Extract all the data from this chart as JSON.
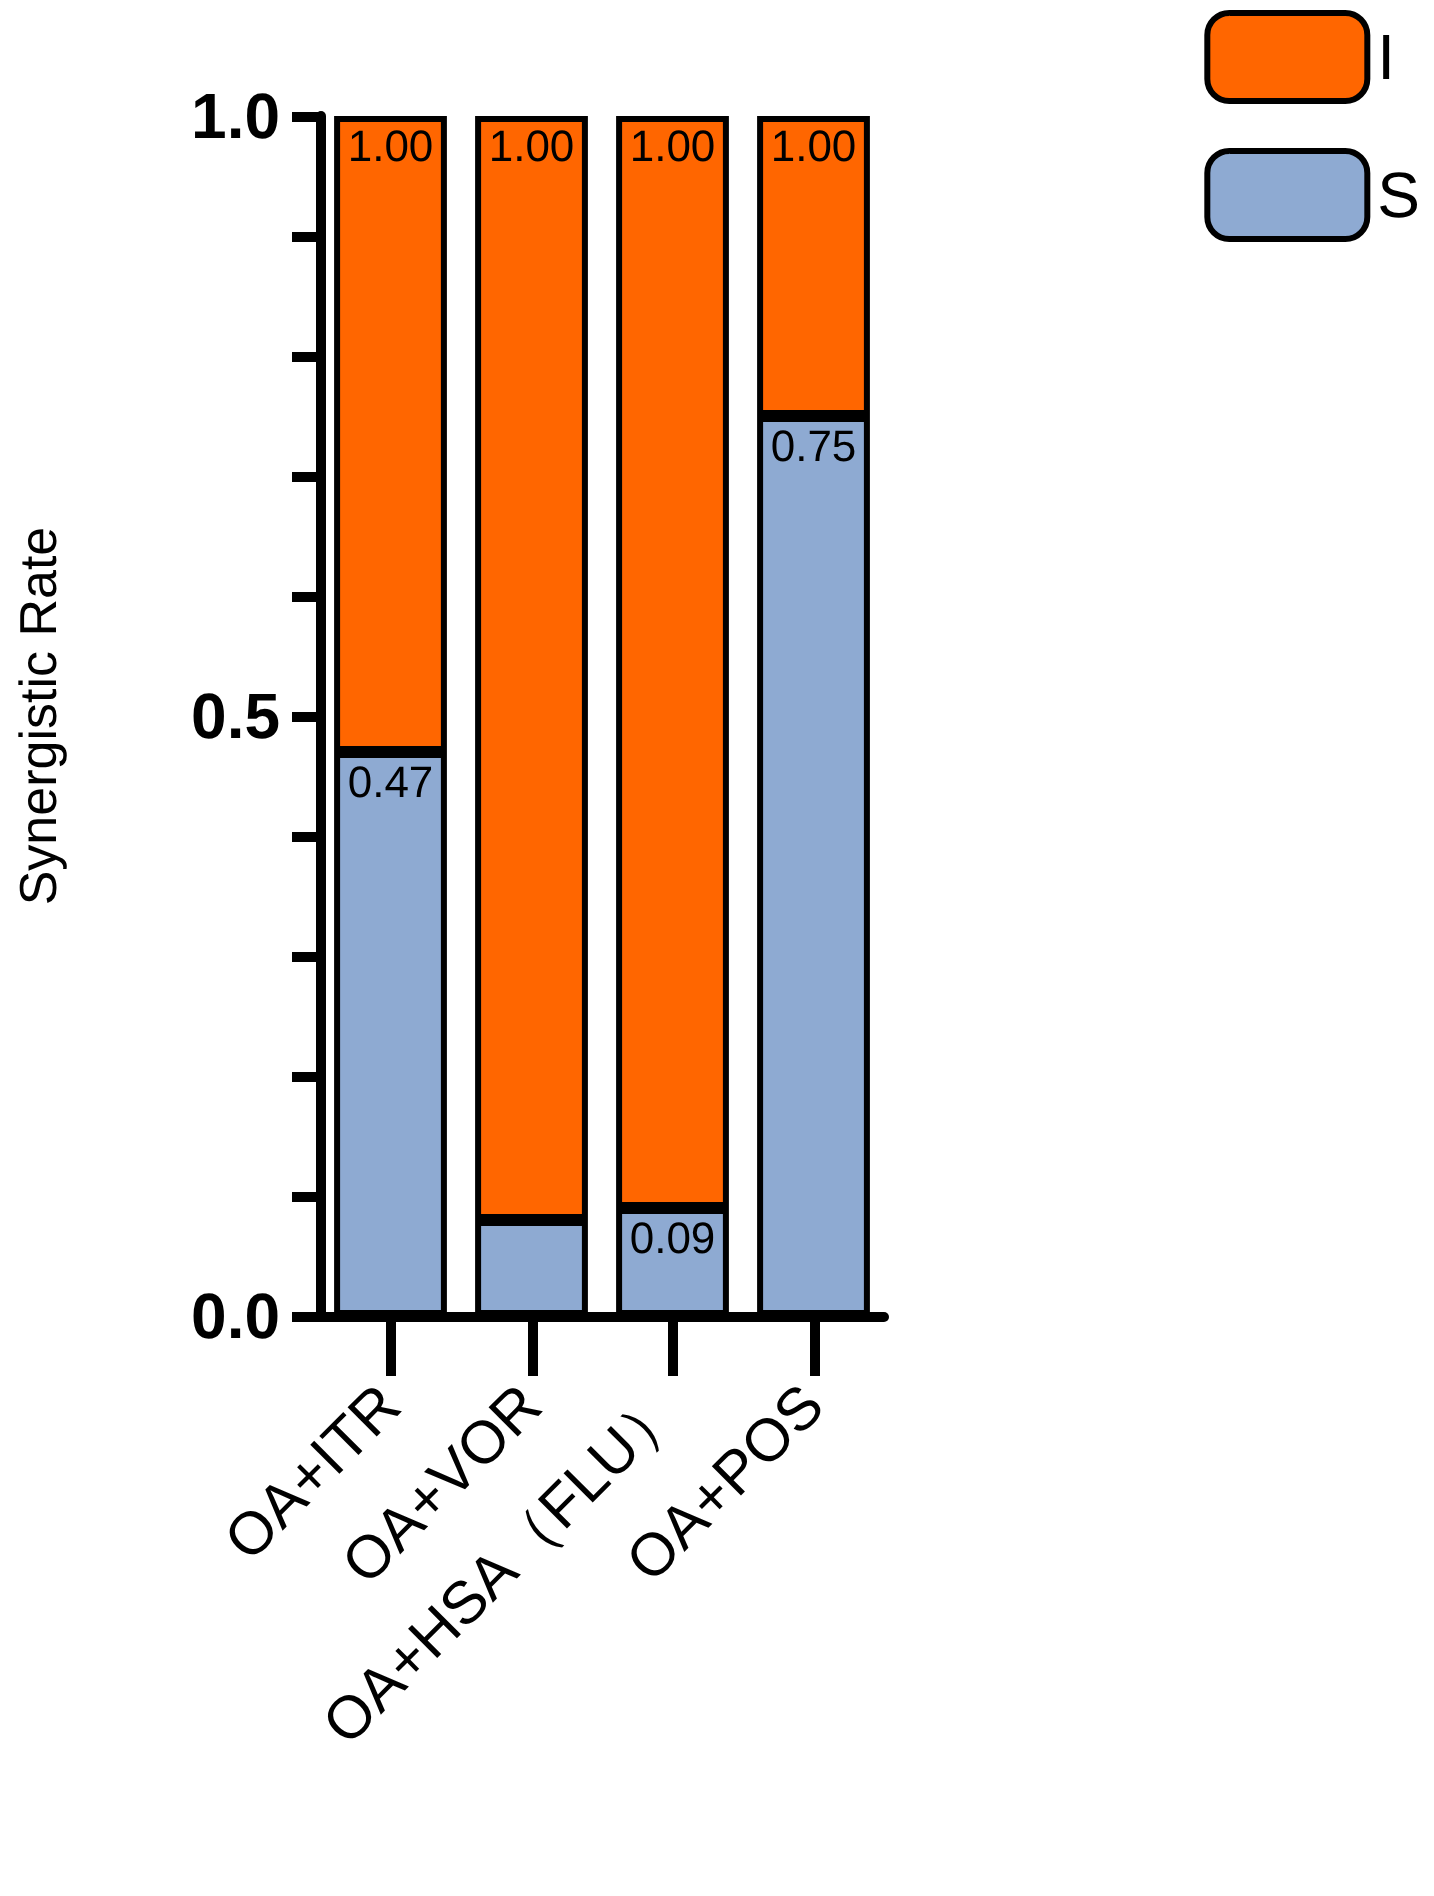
{
  "chart_data": {
    "type": "bar",
    "stacked": true,
    "ylabel": "Synergistic Rate",
    "categories": [
      "OA+ITR",
      "OA+VOR",
      "OA+HSA（FLU）",
      "OA+POS"
    ],
    "series": [
      {
        "name": "S",
        "color": "#8eaad2",
        "values": [
          0.47,
          0.08,
          0.09,
          0.75
        ],
        "value_labels": [
          "0.47",
          null,
          "0.09",
          "0.75"
        ]
      },
      {
        "name": "I",
        "color": "#ff6600",
        "values": [
          0.53,
          0.92,
          0.91,
          0.25
        ]
      }
    ],
    "totals": [
      "1.00",
      "1.00",
      "1.00",
      "1.00"
    ],
    "ylim": [
      0,
      1
    ],
    "yticks": [
      {
        "value": 0,
        "label": "0.0"
      },
      {
        "value": 0.1,
        "label": null
      },
      {
        "value": 0.2,
        "label": null
      },
      {
        "value": 0.3,
        "label": null
      },
      {
        "value": 0.4,
        "label": null
      },
      {
        "value": 0.5,
        "label": "0.5"
      },
      {
        "value": 0.6,
        "label": null
      },
      {
        "value": 0.7,
        "label": null
      },
      {
        "value": 0.8,
        "label": null
      },
      {
        "value": 0.9,
        "label": null
      },
      {
        "value": 1,
        "label": "1.0"
      }
    ],
    "grid": false,
    "legend": "top right"
  }
}
